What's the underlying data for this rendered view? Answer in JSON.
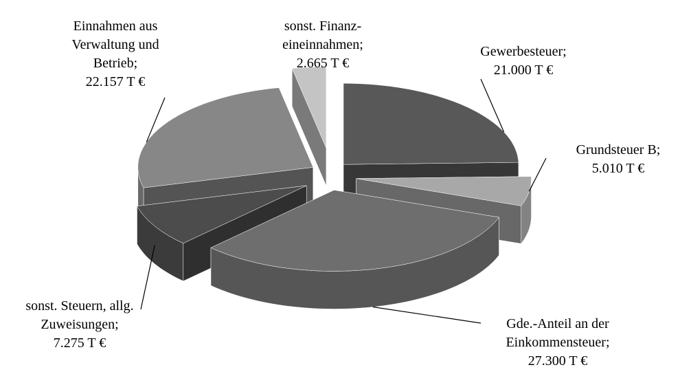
{
  "chart_data": {
    "type": "pie",
    "categories": [
      "Gewerbesteuer;",
      "Grundsteuer  B;",
      "Gde.-Anteil an der Einkommensteuer;",
      "sonst. Steuern, allg. Zuweisungen;",
      "Einnahmen aus Verwaltung und Betrieb;",
      "sonst. Finanz-eineinnahmen;"
    ],
    "values": [
      21000,
      5010,
      27300,
      7275,
      22157,
      2665
    ],
    "value_labels": [
      "21.000 T €",
      "5.010 T €",
      "27.300 T €",
      "7.275 T €",
      "22.157 T €",
      "2.665 T €"
    ],
    "colors": [
      "#585858",
      "#a8a8a8",
      "#6e6e6e",
      "#4c4c4c",
      "#878787",
      "#c4c4c4"
    ]
  }
}
